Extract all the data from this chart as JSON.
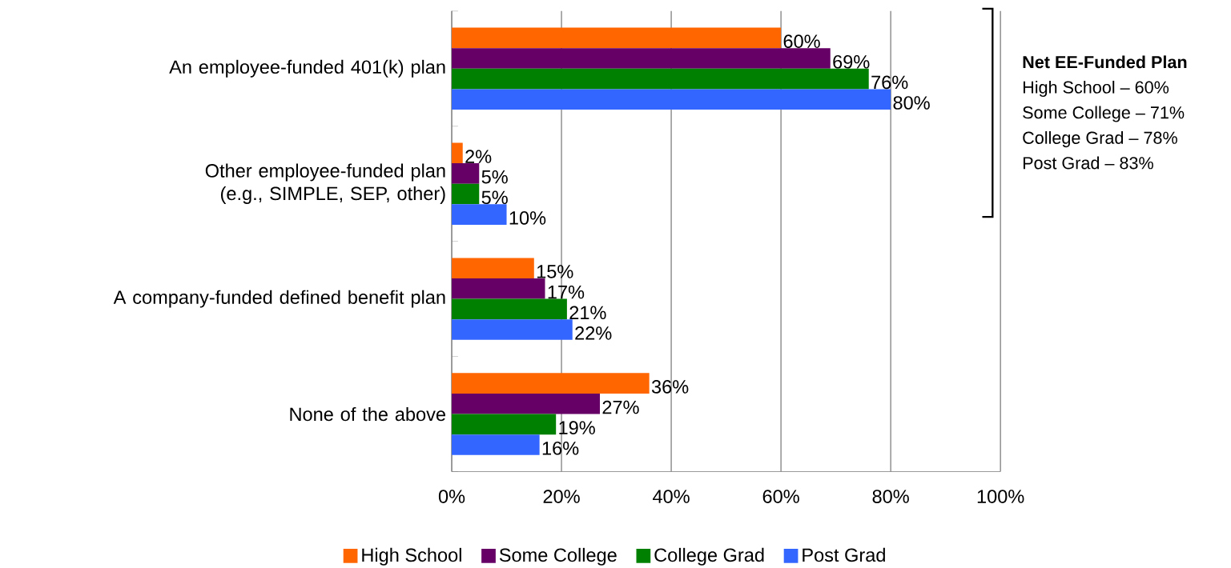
{
  "chart_data": {
    "type": "bar",
    "orientation": "horizontal",
    "categories": [
      "An employee-funded 401(k) plan",
      "Other employee-funded plan (e.g., SIMPLE, SEP, other)",
      "A company-funded defined benefit plan",
      "None of the above"
    ],
    "series": [
      {
        "name": "High School",
        "color": "#ff6600",
        "values": [
          60,
          2,
          15,
          36
        ],
        "value_labels": [
          "60%",
          "2%",
          "15%",
          "36%"
        ]
      },
      {
        "name": "Some College",
        "color": "#660066",
        "values": [
          69,
          5,
          17,
          27
        ],
        "value_labels": [
          "69%",
          "5%",
          "17%",
          "27%"
        ]
      },
      {
        "name": "College Grad",
        "color": "#008000",
        "values": [
          76,
          5,
          21,
          19
        ],
        "value_labels": [
          "76%",
          "5%",
          "21%",
          "19%"
        ]
      },
      {
        "name": "Post Grad",
        "color": "#3366ff",
        "values": [
          80,
          10,
          22,
          16
        ],
        "value_labels": [
          "80%",
          "10%",
          "22%",
          "16%"
        ]
      }
    ],
    "xlim": [
      0,
      100
    ],
    "xticks": [
      {
        "value": 0,
        "label": "0%"
      },
      {
        "value": 20,
        "label": "20%"
      },
      {
        "value": 40,
        "label": "40%"
      },
      {
        "value": 60,
        "label": "60%"
      },
      {
        "value": 80,
        "label": "80%"
      },
      {
        "value": 100,
        "label": "100%"
      }
    ],
    "grid": "x",
    "legend": "bottom",
    "annotations": [
      "**Net EE-Funded Plan**",
      "High School – 60%",
      "Some College – 71%",
      "College Grad – 78%",
      "Post Grad – 83%"
    ]
  }
}
